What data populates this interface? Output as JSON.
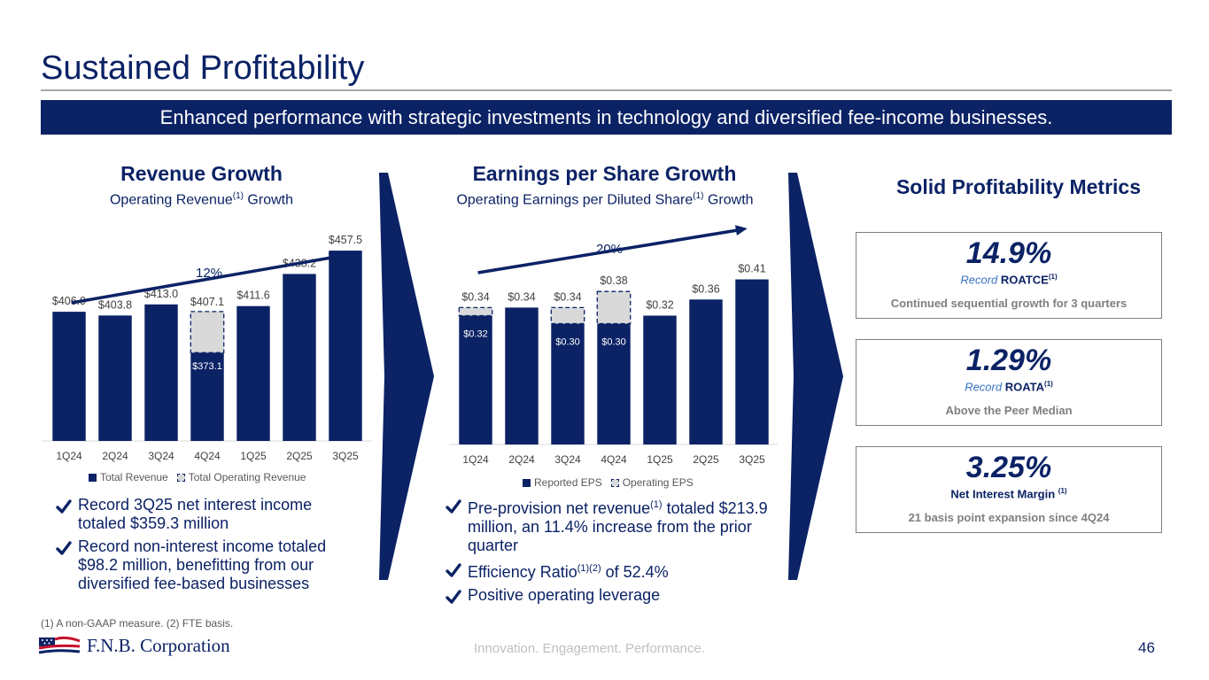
{
  "header": {
    "title": "Sustained Profitability",
    "banner": "Enhanced performance with strategic investments in technology and diversified fee-income businesses."
  },
  "revenue": {
    "title": "Revenue Growth",
    "subtitle_pre": "Operating Revenue",
    "subtitle_sup": "(1)",
    "subtitle_post": " Growth",
    "growth_label": "12%",
    "legend": [
      "Total Revenue",
      "Total Operating Revenue"
    ],
    "bullets": [
      "Record 3Q25 net interest income totaled $359.3 million",
      "Record non-interest income totaled $98.2 million, benefitting from our diversified fee-based businesses"
    ]
  },
  "eps": {
    "title": "Earnings per Share Growth",
    "subtitle_pre": "Operating Earnings per Diluted Share",
    "subtitle_sup": "(1)",
    "subtitle_post": " Growth",
    "growth_label": "20%",
    "legend": [
      "Reported EPS",
      "Operating EPS"
    ],
    "bullet1_pre": "Pre-provision net revenue",
    "bullet1_sup": "(1)",
    "bullet1_post": " totaled $213.9 million, an 11.4% increase from the prior quarter",
    "bullet2_pre": "Efficiency Ratio",
    "bullet2_sup": "(1)(2)",
    "bullet2_post": " of 52.4%",
    "bullet3": "Positive operating leverage"
  },
  "metrics": {
    "title": "Solid Profitability Metrics",
    "items": [
      {
        "value": "14.9%",
        "record": "Record",
        "name": "ROATCE",
        "sup": "(1)",
        "desc": "Continued sequential growth for 3 quarters"
      },
      {
        "value": "1.29%",
        "record": "Record",
        "name": "ROATA",
        "sup": "(1)",
        "desc": "Above the Peer Median"
      },
      {
        "value": "3.25%",
        "name": "Net Interest Margin",
        "sup": "(1)",
        "desc": "21 basis point expansion since 4Q24"
      }
    ]
  },
  "footer": {
    "footnote": "(1) A non-GAAP measure. (2) FTE basis.",
    "logo": "F.N.B. Corporation",
    "tagline": "Innovation. Engagement. Performance.",
    "page": "46"
  },
  "colors": {
    "navy": "#0b2265",
    "op_fill": "#d9d9d9",
    "grey_text": "#7f7f7f"
  },
  "chart_data": [
    {
      "type": "bar",
      "title": "Revenue Growth",
      "categories": [
        "1Q24",
        "2Q24",
        "3Q24",
        "4Q24",
        "1Q25",
        "2Q25",
        "3Q25"
      ],
      "series": [
        {
          "name": "Total Revenue",
          "values": [
            406.9,
            403.8,
            413.0,
            373.1,
            411.6,
            438.2,
            457.5
          ],
          "labels": [
            "$406.9",
            "$403.8",
            "$413.0",
            "$373.1",
            "$411.6",
            "$438.2",
            "$457.5"
          ]
        },
        {
          "name": "Total Operating Revenue",
          "values": [
            406.9,
            403.8,
            413.0,
            407.1,
            411.6,
            438.2,
            457.5
          ],
          "labels": [
            "",
            "",
            "",
            "$407.1",
            "",
            "",
            ""
          ]
        }
      ],
      "ylim": [
        300,
        470
      ],
      "annotation": "12%"
    },
    {
      "type": "bar",
      "title": "Earnings per Share Growth",
      "categories": [
        "1Q24",
        "2Q24",
        "3Q24",
        "4Q24",
        "1Q25",
        "2Q25",
        "3Q25"
      ],
      "series": [
        {
          "name": "Reported EPS",
          "values": [
            0.32,
            0.34,
            0.3,
            0.3,
            0.32,
            0.36,
            0.41
          ],
          "labels": [
            "$0.32",
            "",
            "$0.30",
            "$0.30",
            "",
            "",
            ""
          ]
        },
        {
          "name": "Operating EPS",
          "values": [
            0.34,
            0.34,
            0.34,
            0.38,
            0.32,
            0.36,
            0.41
          ],
          "labels": [
            "$0.34",
            "$0.34",
            "$0.34",
            "$0.38",
            "$0.32",
            "$0.36",
            "$0.41"
          ]
        }
      ],
      "ylim": [
        0,
        0.42
      ],
      "annotation": "20%"
    }
  ]
}
